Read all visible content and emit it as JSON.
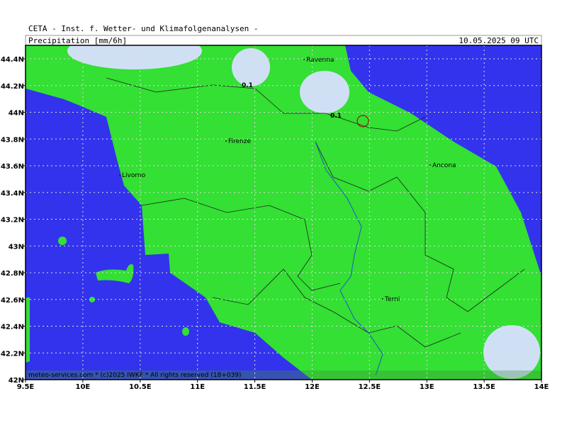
{
  "header": {
    "source": "CETA - Inst. f. Wetter- und Klimafolgenanalysen -",
    "title": "Precipitation [mm/6h]",
    "valid": "10.05.2025 09 UTC"
  },
  "map": {
    "x_ticks": [
      "9.5E",
      "10E",
      "10.5E",
      "11E",
      "11.5E",
      "12E",
      "12.5E",
      "13E",
      "13.5E",
      "14E"
    ],
    "y_ticks": [
      "42N",
      "42.2N",
      "42.4N",
      "42.6N",
      "42.8N",
      "43N",
      "43.2N",
      "43.4N",
      "43.6N",
      "43.8N",
      "44N",
      "44.2N",
      "44.4N"
    ],
    "places": [
      "Ravenna",
      "Firenze",
      "Livorno",
      "Ancona",
      "Terni"
    ],
    "contour_labels": [
      "0.1",
      "0.1"
    ]
  },
  "footer": "meteo-services.com * (c)2025 IWKF * All rights reserved (18+039)"
}
